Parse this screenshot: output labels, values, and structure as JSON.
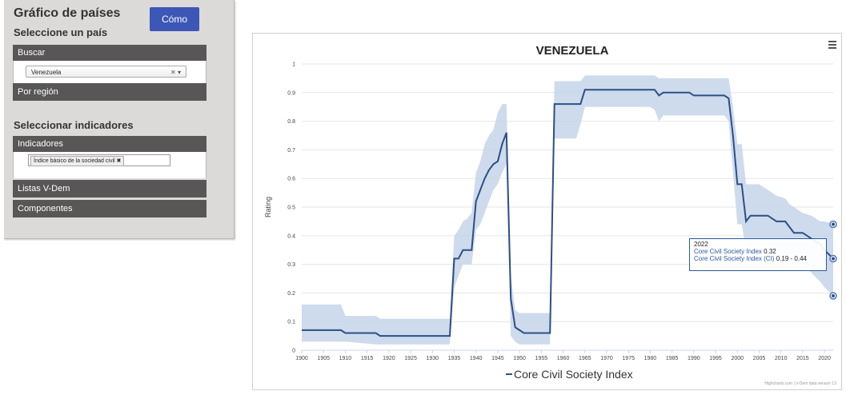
{
  "sidebar": {
    "title": "Gráfico de países",
    "select_country_heading": "Seleccione un país",
    "how_button": "Cómo",
    "search_label": "Buscar",
    "country_value": "Venezuela",
    "by_region_label": "Por región",
    "select_indicators_heading": "Seleccionar indicadores",
    "indicators_label": "Indicadores",
    "indicator_tag": "Índice básico de la sociedad civil",
    "vdem_lists_label": "Listas V-Dem",
    "components_label": "Componentes"
  },
  "chart": {
    "menu_icon": "hamburger-icon",
    "credits": "Highcharts.com | V-Dem data version 13",
    "tooltip": {
      "year": "2022",
      "series_label": "Core Civil Society Index",
      "series_value": "0.32",
      "ci_label": "Core Civil Society Index (CI)",
      "ci_value": "0.19 - 0.44"
    }
  },
  "chart_data": {
    "type": "line",
    "title": "VENEZUELA",
    "xlabel": "",
    "ylabel": "Rating",
    "xlim": [
      1900,
      2022
    ],
    "ylim": [
      0,
      1
    ],
    "xticks": [
      1900,
      1905,
      1910,
      1915,
      1920,
      1925,
      1930,
      1935,
      1940,
      1945,
      1950,
      1955,
      1960,
      1965,
      1970,
      1975,
      1980,
      1985,
      1990,
      1995,
      2000,
      2005,
      2010,
      2015,
      2020
    ],
    "yticks": [
      0,
      0.1,
      0.2,
      0.3,
      0.4,
      0.5,
      0.6,
      0.7,
      0.8,
      0.9,
      1
    ],
    "grid": true,
    "legend": "bottom-center",
    "series": [
      {
        "name": "Core Civil Society Index",
        "color": "#2b4f86",
        "x": [
          1900,
          1909,
          1910,
          1917,
          1918,
          1934,
          1935,
          1936,
          1937,
          1938,
          1939,
          1940,
          1941,
          1942,
          1943,
          1944,
          1945,
          1946,
          1947,
          1948,
          1949,
          1950,
          1951,
          1955,
          1957,
          1958,
          1959,
          1963,
          1964,
          1965,
          1975,
          1980,
          1981,
          1982,
          1983,
          1985,
          1988,
          1989,
          1990,
          1995,
          1997,
          1998,
          1999,
          2000,
          2001,
          2002,
          2003,
          2005,
          2007,
          2008,
          2009,
          2011,
          2012,
          2013,
          2015,
          2017,
          2019,
          2020,
          2022
        ],
        "values": [
          0.07,
          0.07,
          0.06,
          0.06,
          0.05,
          0.05,
          0.32,
          0.32,
          0.35,
          0.35,
          0.35,
          0.52,
          0.56,
          0.6,
          0.63,
          0.65,
          0.66,
          0.72,
          0.76,
          0.18,
          0.08,
          0.07,
          0.06,
          0.06,
          0.06,
          0.86,
          0.86,
          0.86,
          0.86,
          0.91,
          0.91,
          0.91,
          0.91,
          0.89,
          0.9,
          0.9,
          0.9,
          0.9,
          0.89,
          0.89,
          0.89,
          0.88,
          0.75,
          0.58,
          0.58,
          0.45,
          0.47,
          0.47,
          0.47,
          0.46,
          0.45,
          0.45,
          0.43,
          0.41,
          0.41,
          0.39,
          0.37,
          0.35,
          0.32
        ]
      },
      {
        "name": "Core Civil Society Index (CI)",
        "color": "#c5d5ea",
        "x": [
          1900,
          1909,
          1910,
          1917,
          1918,
          1934,
          1935,
          1936,
          1937,
          1938,
          1939,
          1940,
          1941,
          1942,
          1943,
          1944,
          1945,
          1946,
          1947,
          1948,
          1949,
          1950,
          1951,
          1955,
          1957,
          1958,
          1959,
          1963,
          1964,
          1965,
          1975,
          1980,
          1981,
          1982,
          1983,
          1985,
          1988,
          1989,
          1990,
          1995,
          1997,
          1998,
          1999,
          2000,
          2001,
          2002,
          2003,
          2005,
          2007,
          2008,
          2009,
          2011,
          2012,
          2013,
          2015,
          2017,
          2019,
          2020,
          2022
        ],
        "lower": [
          0.03,
          0.03,
          0.03,
          0.02,
          0.02,
          0.02,
          0.22,
          0.26,
          0.3,
          0.3,
          0.3,
          0.42,
          0.44,
          0.48,
          0.52,
          0.56,
          0.58,
          0.62,
          0.65,
          0.05,
          0.03,
          0.02,
          0.02,
          0.02,
          0.02,
          0.74,
          0.74,
          0.74,
          0.79,
          0.85,
          0.85,
          0.85,
          0.84,
          0.8,
          0.82,
          0.82,
          0.82,
          0.82,
          0.82,
          0.82,
          0.82,
          0.8,
          0.62,
          0.44,
          0.44,
          0.35,
          0.36,
          0.36,
          0.36,
          0.35,
          0.34,
          0.34,
          0.32,
          0.3,
          0.3,
          0.27,
          0.24,
          0.22,
          0.19
        ],
        "upper": [
          0.16,
          0.16,
          0.12,
          0.12,
          0.11,
          0.11,
          0.4,
          0.42,
          0.45,
          0.46,
          0.48,
          0.62,
          0.66,
          0.72,
          0.75,
          0.77,
          0.83,
          0.86,
          0.86,
          0.26,
          0.14,
          0.13,
          0.13,
          0.13,
          0.13,
          0.94,
          0.94,
          0.94,
          0.94,
          0.96,
          0.96,
          0.96,
          0.96,
          0.95,
          0.95,
          0.95,
          0.95,
          0.95,
          0.95,
          0.95,
          0.95,
          0.95,
          0.85,
          0.72,
          0.72,
          0.58,
          0.58,
          0.58,
          0.56,
          0.55,
          0.54,
          0.53,
          0.51,
          0.5,
          0.48,
          0.47,
          0.45,
          0.45,
          0.44
        ]
      }
    ],
    "highlighted_point": {
      "x": 2022,
      "value": 0.32,
      "lower": 0.19,
      "upper": 0.44
    }
  }
}
